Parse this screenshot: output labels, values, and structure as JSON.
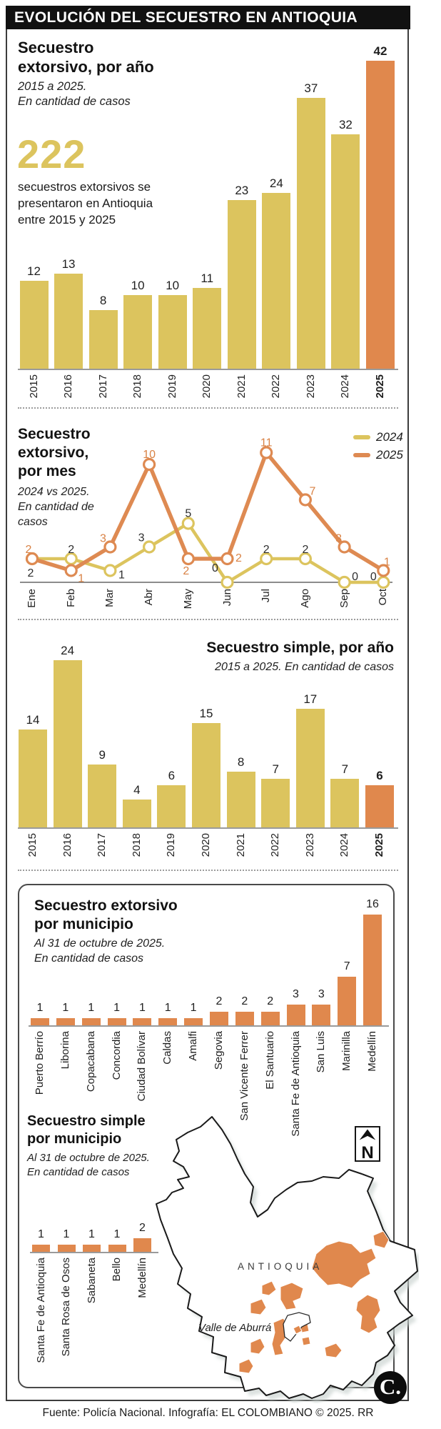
{
  "title_bar": {
    "text": "EVOLUCIÓN DEL SECUESTRO EN ANTIOQUIA"
  },
  "colors": {
    "yellow": "#DCC45E",
    "orange": "#E0884D",
    "line_yellow": "#DCC45E",
    "line_orange": "#DE8A52",
    "label_dark": "#2E2E2E",
    "label_orange": "#D98245"
  },
  "chart_data": [
    {
      "type": "bar",
      "title_lines": [
        "Secuestro",
        "extorsivo, por año"
      ],
      "subtitle_lines": [
        "2015 a 2025.",
        "En cantidad de casos"
      ],
      "categories": [
        "2015",
        "2016",
        "2017",
        "2018",
        "2019",
        "2020",
        "2021",
        "2022",
        "2023",
        "2024",
        "2025"
      ],
      "values": [
        12,
        13,
        8,
        10,
        10,
        11,
        23,
        24,
        37,
        32,
        42
      ],
      "highlight_index": 10,
      "bar_color": "#DCC45E",
      "highlight_color": "#E0884D",
      "ylim": [
        0,
        42
      ],
      "annotation": {
        "number": "222",
        "caption_lines": [
          "secuestros extorsivos se",
          "presentaron en Antioquia",
          "entre 2015 y 2025"
        ]
      }
    },
    {
      "type": "line",
      "title_lines": [
        "Secuestro",
        "extorsivo,",
        "por mes"
      ],
      "subtitle_lines": [
        "2024 vs 2025.",
        "En cantidad de",
        "casos"
      ],
      "x": [
        "Ene",
        "Feb",
        "Mar",
        "Abr",
        "May",
        "Jun",
        "Jul",
        "Ago",
        "Sep",
        "Oct"
      ],
      "series": [
        {
          "name": "2024",
          "color": "#DCC45E",
          "values": [
            2,
            2,
            1,
            3,
            5,
            0,
            2,
            2,
            0,
            0
          ]
        },
        {
          "name": "2025",
          "color": "#DE8A52",
          "values": [
            2,
            1,
            3,
            10,
            2,
            2,
            11,
            7,
            3,
            1
          ]
        }
      ],
      "ylim": [
        0,
        11
      ],
      "legend_position": "top-right"
    },
    {
      "type": "bar",
      "title": "Secuestro simple, por año",
      "subtitle": "2015 a 2025. En cantidad de casos",
      "categories": [
        "2015",
        "2016",
        "2017",
        "2018",
        "2019",
        "2020",
        "2021",
        "2022",
        "2023",
        "2024",
        "2025"
      ],
      "values": [
        14,
        24,
        9,
        4,
        6,
        15,
        8,
        7,
        17,
        7,
        6
      ],
      "highlight_index": 10,
      "bar_color": "#DCC45E",
      "highlight_color": "#E0884D",
      "ylim": [
        0,
        24
      ]
    },
    {
      "type": "bar",
      "title_lines": [
        "Secuestro extorsivo",
        "por municipio"
      ],
      "subtitle_lines": [
        "Al 31 de octubre de 2025.",
        "En cantidad de casos"
      ],
      "categories": [
        "Puerto Berrío",
        "Liborina",
        "Copacabana",
        "Concordia",
        "Ciudad Bolívar",
        "Caldas",
        "Amalfi",
        "Segovia",
        "San Vicente Ferrer",
        "El Santuario",
        "Santa Fe de Antioquia",
        "San Luis",
        "Marinilla",
        "Medellín"
      ],
      "values": [
        1,
        1,
        1,
        1,
        1,
        1,
        1,
        2,
        2,
        2,
        3,
        3,
        7,
        16
      ],
      "highlight_index": -1,
      "bar_color": "#E0884D",
      "highlight_color": "#E0884D",
      "ylim": [
        0,
        16
      ]
    },
    {
      "type": "bar",
      "title_lines": [
        "Secuestro simple",
        "por municipio"
      ],
      "subtitle_lines": [
        "Al 31 de octubre de 2025.",
        "En cantidad de casos"
      ],
      "categories": [
        "Santa Fe de Antioquia",
        "Santa Rosa de Osos",
        "Sabaneta",
        "Bello",
        "Medellín"
      ],
      "values": [
        1,
        1,
        1,
        1,
        2
      ],
      "highlight_index": -1,
      "bar_color": "#E0884D",
      "highlight_color": "#E0884D",
      "ylim": [
        0,
        2
      ]
    }
  ],
  "map": {
    "region_label": "ANTIOQUIA",
    "valley_label": "Valle de Aburrá",
    "north_label": "N"
  },
  "logo": {
    "text": "C."
  },
  "footer": {
    "source": "Fuente: Policía Nacional. Infografía: EL COLOMBIANO © 2025. RR"
  }
}
